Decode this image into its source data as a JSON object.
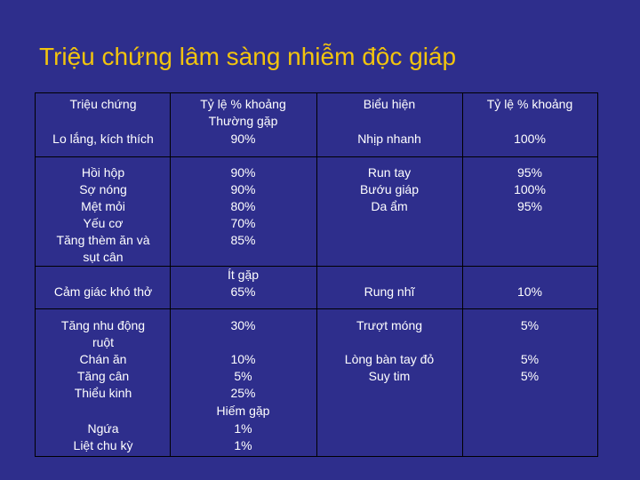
{
  "title": "Triệu chứng lâm sàng nhiễm độc giáp",
  "header": {
    "col1": "Triệu chứng",
    "col2": [
      "Tỷ lệ %  khoảng",
      "Thường gặp"
    ],
    "col3": "Biểu hiện",
    "col4": "Tỷ lệ % khoảng"
  },
  "row1": {
    "symptom": "Lo lắng, kích thích",
    "pct": "90%",
    "sign": "Nhịp nhanh",
    "sign_pct": "100%"
  },
  "row2": {
    "symptoms": [
      "Hồi hộp",
      "Sợ nóng",
      "Mệt mỏi",
      "Yếu cơ",
      "Tăng thèm ăn và",
      "sụt cân"
    ],
    "pcts": [
      "90%",
      "90%",
      "80%",
      "70%",
      "85%"
    ],
    "signs": [
      "Run tay",
      "Bướu giáp",
      "Da ẩm"
    ],
    "sign_pcts": [
      "95%",
      "100%",
      "95%"
    ]
  },
  "row3": {
    "symptom": "Cảm giác khó thở",
    "pct_heading": "Ít gặp",
    "pct": "65%",
    "sign": "Rung nhĩ",
    "sign_pct": "10%"
  },
  "row4": {
    "symptoms": [
      "Tăng nhu động",
      "ruột",
      "Chán ăn",
      "Tăng cân",
      "Thiểu kinh",
      "",
      "Ngứa",
      "Liệt chu kỳ"
    ],
    "pcts": [
      "30%",
      "",
      "10%",
      "5%",
      "25%",
      "Hiếm gặp",
      "1%",
      "1%"
    ],
    "signs": [
      "Trượt móng",
      "",
      "Lòng bàn tay đỏ",
      "Suy tim"
    ],
    "sign_pcts": [
      "5%",
      "",
      "5%",
      "5%"
    ]
  }
}
